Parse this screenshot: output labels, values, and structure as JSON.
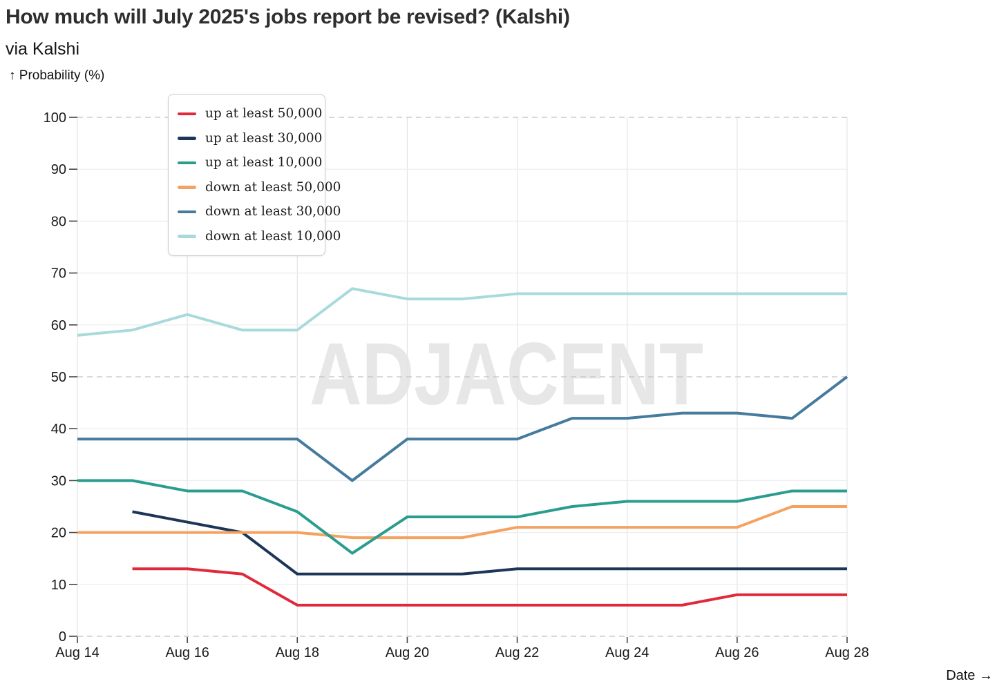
{
  "header": {
    "title": "How much will July 2025's jobs report be revised? (Kalshi)",
    "subtitle": "via Kalshi"
  },
  "watermark": "ADJACENT",
  "chart_data": {
    "type": "line",
    "title": "How much will July 2025's jobs report be revised? (Kalshi)",
    "subtitle": "via Kalshi",
    "ylabel": "↑ Probability (%)",
    "xlabel": "Date →",
    "ylim": [
      0,
      100
    ],
    "y_ticks": [
      0,
      10,
      20,
      30,
      40,
      50,
      60,
      70,
      80,
      90,
      100
    ],
    "dashed_gridlines": [
      0,
      25,
      50,
      75,
      100
    ],
    "x_tick_every": 2,
    "grid": true,
    "legend_position": "top-left",
    "x": [
      "Aug 14",
      "Aug 15",
      "Aug 16",
      "Aug 17",
      "Aug 18",
      "Aug 19",
      "Aug 20",
      "Aug 21",
      "Aug 22",
      "Aug 23",
      "Aug 24",
      "Aug 25",
      "Aug 26",
      "Aug 27",
      "Aug 28"
    ],
    "x_tick_labels": [
      "Aug 14",
      "Aug 16",
      "Aug 18",
      "Aug 20",
      "Aug 22",
      "Aug 24",
      "Aug 26",
      "Aug 28"
    ],
    "series": [
      {
        "name": "up at least 50,000",
        "color": "#e02a3c",
        "values": [
          null,
          13,
          13,
          12,
          6,
          6,
          6,
          6,
          6,
          6,
          6,
          6,
          8,
          8,
          8
        ]
      },
      {
        "name": "up at least 30,000",
        "color": "#1d3557",
        "values": [
          null,
          24,
          22,
          20,
          12,
          12,
          12,
          12,
          13,
          13,
          13,
          13,
          13,
          13,
          13
        ]
      },
      {
        "name": "up at least 10,000",
        "color": "#2a9d8f",
        "values": [
          30,
          30,
          28,
          28,
          24,
          16,
          23,
          23,
          23,
          25,
          26,
          26,
          26,
          28,
          28
        ]
      },
      {
        "name": "down at least 50,000",
        "color": "#f4a261",
        "values": [
          20,
          20,
          20,
          20,
          20,
          19,
          19,
          19,
          21,
          21,
          21,
          21,
          21,
          25,
          25
        ]
      },
      {
        "name": "down at least 30,000",
        "color": "#457b9d",
        "values": [
          38,
          38,
          38,
          38,
          38,
          30,
          38,
          38,
          38,
          42,
          42,
          43,
          43,
          42,
          50
        ]
      },
      {
        "name": "down at least 10,000",
        "color": "#a8dadc",
        "values": [
          58,
          59,
          62,
          59,
          59,
          67,
          65,
          65,
          66,
          66,
          66,
          66,
          66,
          66,
          66
        ]
      }
    ]
  },
  "style": {
    "grid_solid_color": "#ececec",
    "grid_vertical_color": "#e4e4e4",
    "grid_dashed_color": "#c2c2c2",
    "tick_color": "#444444",
    "tick_label_color": "#1a1a1a",
    "watermark_color": "#e7e7e7"
  }
}
